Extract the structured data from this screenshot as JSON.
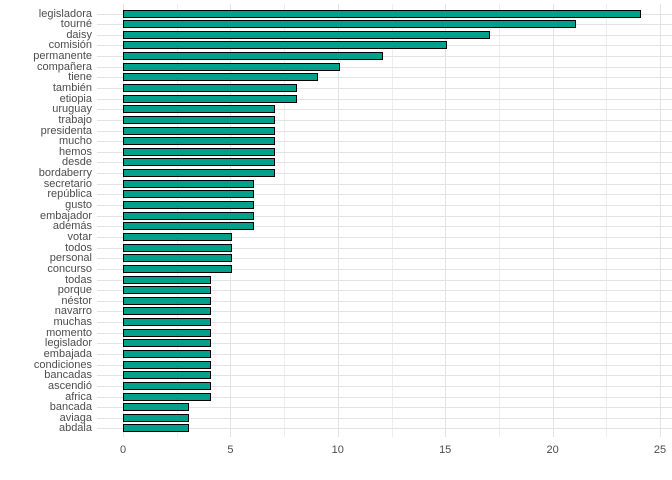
{
  "chart_data": {
    "type": "bar",
    "orientation": "horizontal",
    "title": "",
    "xlabel": "",
    "ylabel": "",
    "categories": [
      "legisladora",
      "tourné",
      "daisy",
      "comisión",
      "permanente",
      "compañera",
      "tiene",
      "también",
      "etiopia",
      "uruguay",
      "trabajo",
      "presidenta",
      "mucho",
      "hemos",
      "desde",
      "bordaberry",
      "secretario",
      "república",
      "gusto",
      "embajador",
      "además",
      "votar",
      "todos",
      "personal",
      "concurso",
      "todas",
      "porque",
      "néstor",
      "navarro",
      "muchas",
      "momento",
      "legislador",
      "embajada",
      "condiciones",
      "bancadas",
      "ascendió",
      "africa",
      "bancada",
      "aviaga",
      "abdala"
    ],
    "values": [
      24,
      21,
      17,
      15,
      12,
      10,
      9,
      8,
      8,
      7,
      7,
      7,
      7,
      7,
      7,
      7,
      6,
      6,
      6,
      6,
      6,
      5,
      5,
      5,
      5,
      4,
      4,
      4,
      4,
      4,
      4,
      4,
      4,
      4,
      4,
      4,
      4,
      3,
      3,
      3
    ],
    "x_ticks": [
      0,
      5,
      10,
      15,
      20,
      25
    ],
    "xlim": [
      0,
      25
    ],
    "grid": "major-and-minor",
    "legend": "none",
    "colors": {
      "bar_fill": "#00A08C",
      "bar_stroke": "#000000",
      "grid_major": "#E3E3E3",
      "grid_minor": "#EDEDED",
      "axis_text": "#4D4D4D",
      "background": "#FFFFFF"
    }
  }
}
